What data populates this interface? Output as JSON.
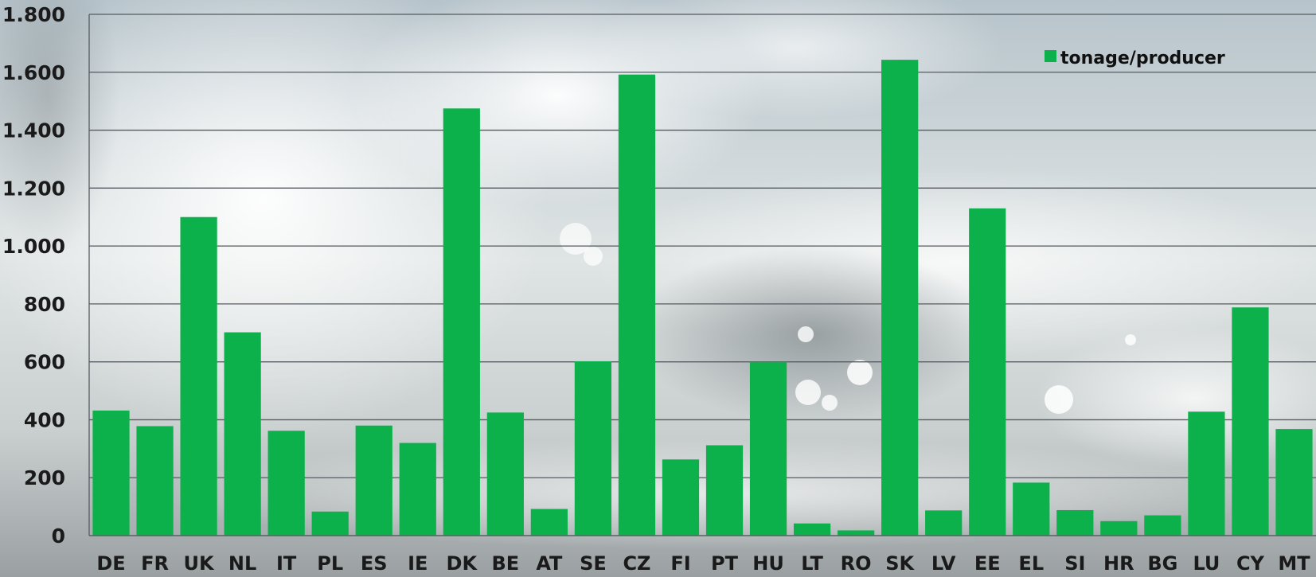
{
  "chart_data": {
    "type": "bar",
    "title": "",
    "xlabel": "",
    "ylabel": "",
    "ylim": [
      0,
      1800
    ],
    "yticks": [
      0,
      200,
      400,
      600,
      800,
      1000,
      1200,
      1400,
      1600,
      1800
    ],
    "ytick_labels": [
      "0",
      "200",
      "400",
      "600",
      "800",
      "1.000",
      "1.200",
      "1.400",
      "1.600",
      "1.800"
    ],
    "grid": true,
    "legend_position": "top-right",
    "categories": [
      "DE",
      "FR",
      "UK",
      "NL",
      "IT",
      "PL",
      "ES",
      "IE",
      "DK",
      "BE",
      "AT",
      "SE",
      "CZ",
      "FI",
      "PT",
      "HU",
      "LT",
      "RO",
      "SK",
      "LV",
      "EE",
      "EL",
      "SI",
      "HR",
      "BG",
      "LU",
      "CY",
      "MT"
    ],
    "series": [
      {
        "name": "tonage/producer",
        "color": "#0db14b",
        "values": [
          432,
          378,
          1100,
          702,
          362,
          83,
          380,
          320,
          1475,
          425,
          92,
          602,
          1592,
          263,
          312,
          600,
          42,
          18,
          1643,
          87,
          1130,
          183,
          88,
          50,
          70,
          428,
          788,
          368
        ]
      }
    ]
  },
  "background": {
    "description_color": "#b9c6cc"
  }
}
